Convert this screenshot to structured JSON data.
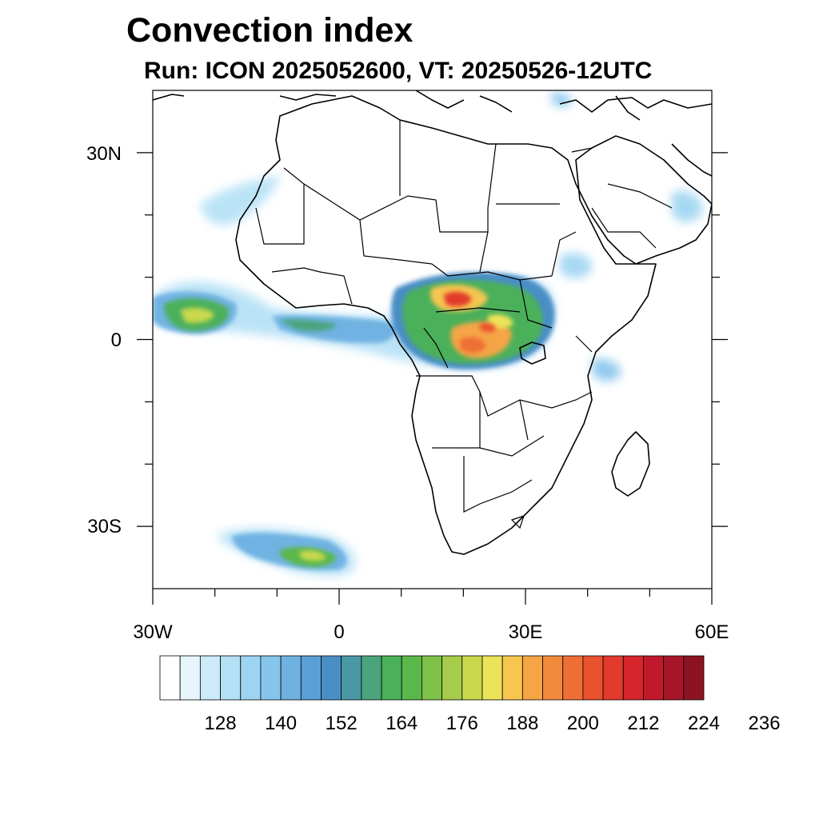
{
  "title": "Convection index",
  "subtitle": "Run: ICON 2025052600,  VT: 20250526-12UTC",
  "map": {
    "region": "Africa",
    "lon_range": [
      -30,
      60
    ],
    "lat_range": [
      -40,
      40
    ],
    "lon_tick_labels": [
      "30W",
      "0",
      "30E",
      "60E"
    ],
    "lat_tick_labels": [
      "30N",
      "0",
      "30S"
    ]
  },
  "colorbar": {
    "labels": [
      "128",
      "140",
      "152",
      "164",
      "176",
      "188",
      "200",
      "212",
      "224",
      "236"
    ],
    "colors": [
      "#ffffff",
      "#e8f5fc",
      "#cdeaf8",
      "#b4e0f6",
      "#9dd4f2",
      "#86c5ec",
      "#6fb2e2",
      "#5a9fd5",
      "#4a8ec6",
      "#4a98a4",
      "#4aa47d",
      "#4bb05a",
      "#5ab84a",
      "#7fc24a",
      "#a6cc4a",
      "#c9d84d",
      "#ede35a",
      "#f6c64f",
      "#f5a545",
      "#f28a3c",
      "#ef6e35",
      "#e9512f",
      "#e23a2c",
      "#d6262b",
      "#c2182b",
      "#a81528",
      "#8c1422"
    ]
  }
}
